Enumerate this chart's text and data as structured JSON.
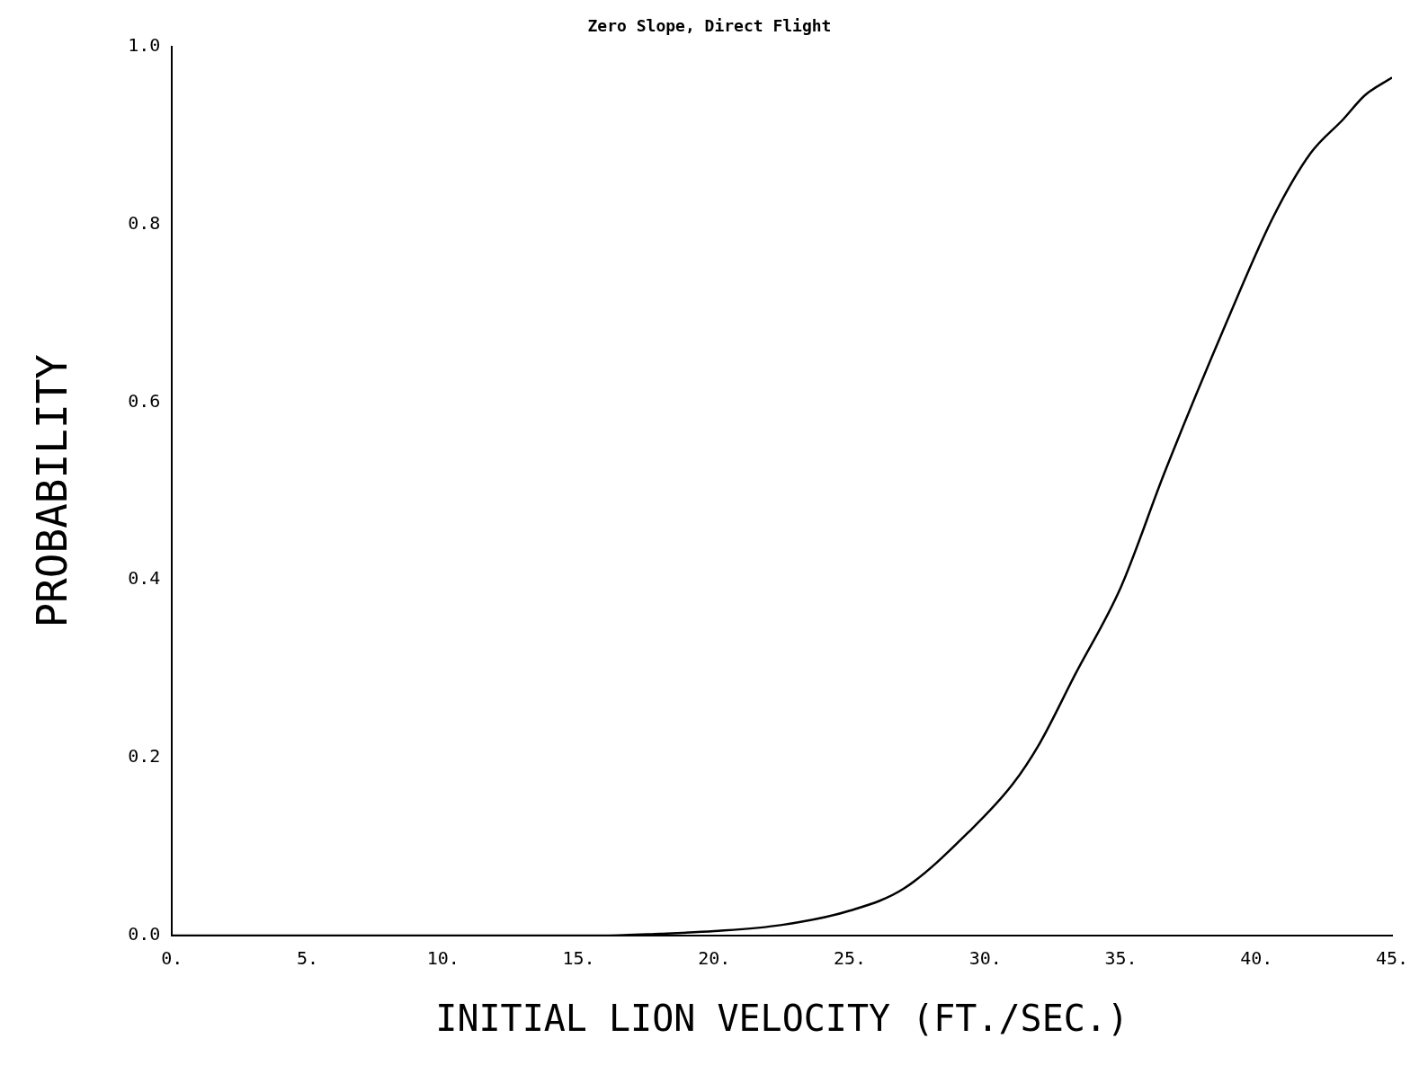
{
  "chart_data": {
    "type": "line",
    "title": "Zero Slope, Direct Flight",
    "xlabel": "INITIAL LION VELOCITY (FT./SEC.)",
    "ylabel": "PROBABILITY",
    "x": [
      0,
      16,
      18,
      20,
      22.5,
      25,
      27,
      29.5,
      31,
      32,
      33.3,
      35,
      36.6,
      38.9,
      40.6,
      42,
      43.2,
      44,
      45
    ],
    "series": [
      {
        "color": "#000000",
        "values": [
          0,
          0,
          0.002,
          0.005,
          0.012,
          0.028,
          0.053,
          0.12,
          0.17,
          0.216,
          0.293,
          0.392,
          0.52,
          0.69,
          0.807,
          0.88,
          0.918,
          0.945,
          0.965
        ]
      }
    ],
    "xlim": [
      0,
      45
    ],
    "ylim": [
      0,
      1
    ],
    "xticks": [
      {
        "value": 0,
        "label": "0."
      },
      {
        "value": 5,
        "label": "5."
      },
      {
        "value": 10,
        "label": "10."
      },
      {
        "value": 15,
        "label": "15."
      },
      {
        "value": 20,
        "label": "20."
      },
      {
        "value": 25,
        "label": "25."
      },
      {
        "value": 30,
        "label": "30."
      },
      {
        "value": 35,
        "label": "35."
      },
      {
        "value": 40,
        "label": "40."
      },
      {
        "value": 45,
        "label": "45."
      }
    ],
    "yticks": [
      {
        "value": 0,
        "label": "0.0"
      },
      {
        "value": 0.2,
        "label": "0.2"
      },
      {
        "value": 0.4,
        "label": "0.4"
      },
      {
        "value": 0.6,
        "label": "0.6"
      },
      {
        "value": 0.8,
        "label": "0.8"
      },
      {
        "value": 1,
        "label": "1.0"
      }
    ],
    "grid": false,
    "legend": false,
    "marker": "none",
    "line_style": "solid"
  }
}
